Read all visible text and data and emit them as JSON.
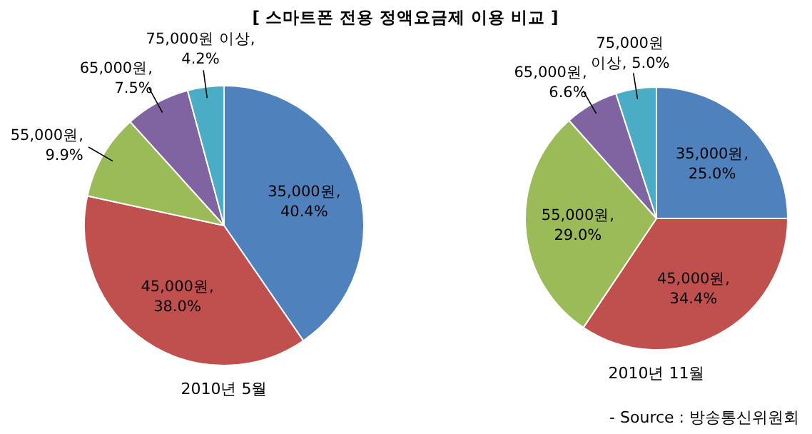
{
  "chart_data": [
    {
      "type": "pie",
      "title": "[ 스마트폰 전용 정액요금제 이용 비교 ]",
      "xlabel": "2010년 5월",
      "categories": [
        "35,000원",
        "45,000원",
        "55,000원",
        "65,000원",
        "75,000원 이상"
      ],
      "values": [
        40.4,
        38.0,
        9.9,
        7.5,
        4.2
      ],
      "value_labels": [
        ", 40.4%",
        ", 38.0%",
        ", 9.9%",
        ", 7.5%",
        ", 4.2%"
      ],
      "colors": [
        "#4f81bd",
        "#c0504d",
        "#9bbb59",
        "#8064a2",
        "#4bacc6"
      ],
      "data_labels": true
    },
    {
      "type": "pie",
      "xlabel": "2010년 11월",
      "categories": [
        "35,000원",
        "45,000원",
        "55,000원",
        "65,000원",
        "75,000원 이상"
      ],
      "values": [
        25.0,
        34.4,
        29.0,
        6.6,
        5.0
      ],
      "value_labels": [
        ", 25.0%",
        ", 34.4%",
        ", 29.0%",
        ", 6.6%",
        ", 5.0%"
      ],
      "colors": [
        "#4f81bd",
        "#c0504d",
        "#9bbb59",
        "#8064a2",
        "#4bacc6"
      ],
      "data_labels": true,
      "annotations": [
        "- Source : 방송통신위원회"
      ]
    }
  ]
}
